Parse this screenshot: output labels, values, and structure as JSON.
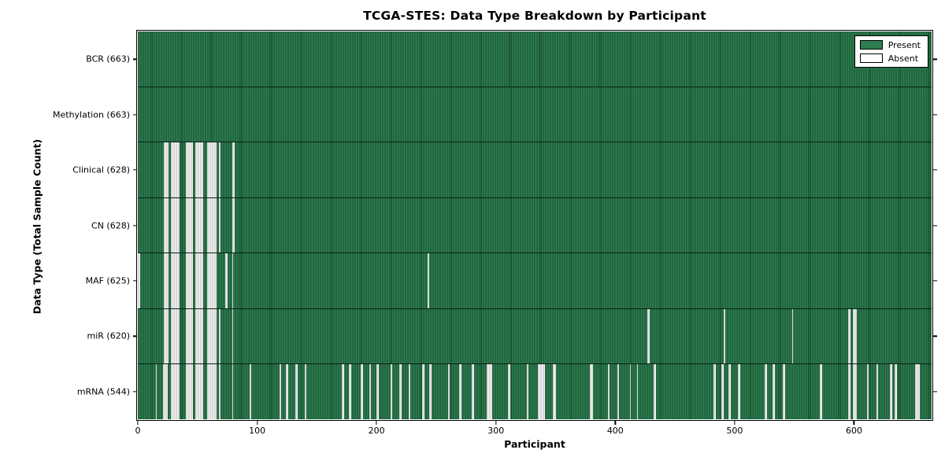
{
  "chart_data": {
    "type": "heatmap",
    "title": "TCGA-STES: Data Type Breakdown by Participant",
    "xlabel": "Participant",
    "ylabel": "Data Type (Total Sample Count)",
    "x_ticks": [
      0,
      100,
      200,
      300,
      400,
      500,
      600
    ],
    "xlim": [
      0,
      665
    ],
    "n_participants": 663,
    "grid": false,
    "legend": {
      "position": "upper right",
      "entries": [
        {
          "label": "Present",
          "color": "#2e7d50"
        },
        {
          "label": "Absent",
          "color": "#ffffff"
        }
      ]
    },
    "colors": {
      "present_fill": "#2e7d50",
      "present_edge": "#17502f",
      "absent_fill": "#f4f4f4",
      "absent_edge": "#bdbdbd",
      "axis": "#000000",
      "background": "#ffffff"
    },
    "rows": [
      {
        "data_type": "BCR",
        "label": "BCR (663)",
        "total_samples": 663,
        "absent_count": 0,
        "absent_ranges": []
      },
      {
        "data_type": "Methylation",
        "label": "Methylation (663)",
        "total_samples": 663,
        "absent_count": 0,
        "absent_ranges": []
      },
      {
        "data_type": "Clinical",
        "label": "Clinical (628)",
        "total_samples": 628,
        "absent_count": 35,
        "absent_ranges": [
          [
            22,
            25
          ],
          [
            28,
            34
          ],
          [
            40,
            45
          ],
          [
            48,
            54
          ],
          [
            58,
            65
          ],
          [
            68,
            68
          ],
          [
            79,
            80
          ]
        ]
      },
      {
        "data_type": "CN",
        "label": "CN (628)",
        "total_samples": 628,
        "absent_count": 35,
        "absent_ranges": [
          [
            22,
            25
          ],
          [
            28,
            34
          ],
          [
            40,
            45
          ],
          [
            48,
            54
          ],
          [
            58,
            65
          ],
          [
            68,
            68
          ],
          [
            79,
            80
          ]
        ]
      },
      {
        "data_type": "MAF",
        "label": "MAF (625)",
        "total_samples": 625,
        "absent_count": 38,
        "absent_ranges": [
          [
            0,
            1
          ],
          [
            22,
            25
          ],
          [
            28,
            34
          ],
          [
            40,
            45
          ],
          [
            48,
            54
          ],
          [
            58,
            65
          ],
          [
            73,
            74
          ],
          [
            79,
            79
          ],
          [
            243,
            243
          ]
        ]
      },
      {
        "data_type": "miR",
        "label": "miR (620)",
        "total_samples": 620,
        "absent_count": 43,
        "absent_ranges": [
          [
            22,
            25
          ],
          [
            28,
            34
          ],
          [
            40,
            45
          ],
          [
            48,
            54
          ],
          [
            58,
            65
          ],
          [
            68,
            68
          ],
          [
            79,
            79
          ],
          [
            427,
            428
          ],
          [
            491,
            491
          ],
          [
            548,
            548
          ],
          [
            595,
            596
          ],
          [
            599,
            601
          ]
        ]
      },
      {
        "data_type": "mRNA",
        "label": "mRNA (544)",
        "total_samples": 544,
        "absent_count": 119,
        "absent_ranges": [
          [
            15,
            15
          ],
          [
            21,
            24
          ],
          [
            28,
            34
          ],
          [
            40,
            45
          ],
          [
            48,
            54
          ],
          [
            58,
            65
          ],
          [
            68,
            68
          ],
          [
            79,
            79
          ],
          [
            94,
            94
          ],
          [
            119,
            119
          ],
          [
            124,
            125
          ],
          [
            132,
            133
          ],
          [
            140,
            140
          ],
          [
            171,
            172
          ],
          [
            177,
            178
          ],
          [
            187,
            188
          ],
          [
            194,
            194
          ],
          [
            200,
            201
          ],
          [
            212,
            212
          ],
          [
            219,
            220
          ],
          [
            227,
            227
          ],
          [
            238,
            239
          ],
          [
            244,
            245
          ],
          [
            260,
            260
          ],
          [
            269,
            270
          ],
          [
            280,
            281
          ],
          [
            292,
            296
          ],
          [
            310,
            311
          ],
          [
            326,
            326
          ],
          [
            335,
            340
          ],
          [
            348,
            349
          ],
          [
            379,
            380
          ],
          [
            394,
            394
          ],
          [
            402,
            402
          ],
          [
            412,
            412
          ],
          [
            418,
            418
          ],
          [
            432,
            433
          ],
          [
            482,
            483
          ],
          [
            489,
            490
          ],
          [
            495,
            496
          ],
          [
            503,
            504
          ],
          [
            525,
            526
          ],
          [
            532,
            533
          ],
          [
            540,
            541
          ],
          [
            571,
            572
          ],
          [
            595,
            596
          ],
          [
            599,
            601
          ],
          [
            611,
            611
          ],
          [
            619,
            619
          ],
          [
            630,
            631
          ],
          [
            634,
            635
          ],
          [
            651,
            654
          ]
        ]
      }
    ]
  }
}
